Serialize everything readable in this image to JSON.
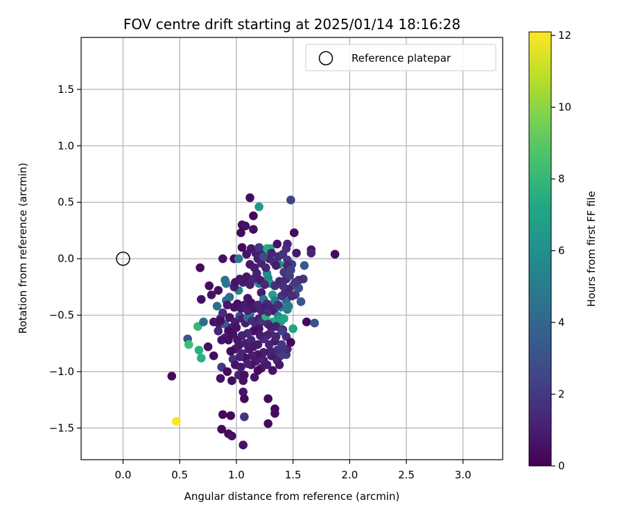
{
  "chart_data": {
    "type": "scatter",
    "title": "FOV centre drift starting at 2025/01/14 18:16:28",
    "xlabel": "Angular distance from reference (arcmin)",
    "ylabel": "Rotation from reference (arcmin)",
    "xlim": [
      -0.37,
      3.35
    ],
    "ylim": [
      -1.78,
      1.96
    ],
    "xticks": [
      0.0,
      0.5,
      1.0,
      1.5,
      2.0,
      2.5,
      3.0
    ],
    "xtick_labels": [
      "0.0",
      "0.5",
      "1.0",
      "1.5",
      "2.0",
      "2.5",
      "3.0"
    ],
    "yticks": [
      -1.5,
      -1.0,
      -0.5,
      0.0,
      0.5,
      1.0,
      1.5
    ],
    "ytick_labels": [
      "−1.5",
      "−1.0",
      "−0.5",
      "0.0",
      "0.5",
      "1.0",
      "1.5"
    ],
    "grid": true,
    "legend": {
      "position": "top-right",
      "label": "Reference platepar"
    },
    "reference_point": {
      "x": 0.0,
      "y": 0.0
    },
    "colorbar": {
      "label": "Hours from first FF file",
      "range": [
        0,
        12.1
      ],
      "ticks": [
        0,
        2,
        4,
        6,
        8,
        10,
        12
      ],
      "tick_labels": [
        "0",
        "2",
        "4",
        "6",
        "8",
        "10",
        "12"
      ],
      "colormap": "viridis"
    },
    "points": [
      [
        1.12,
        0.54,
        0.4
      ],
      [
        1.05,
        0.3,
        0.5
      ],
      [
        1.08,
        0.29,
        0.6
      ],
      [
        1.04,
        0.23,
        0.3
      ],
      [
        1.15,
        0.38,
        0.2
      ],
      [
        1.15,
        0.26,
        0.5
      ],
      [
        1.48,
        0.52,
        2.4
      ],
      [
        1.51,
        0.23,
        0.3
      ],
      [
        1.2,
        0.46,
        6.5
      ],
      [
        0.98,
        0.0,
        0.4
      ],
      [
        0.88,
        0.0,
        0.5
      ],
      [
        1.05,
        0.1,
        0.3
      ],
      [
        1.23,
        0.06,
        0.6
      ],
      [
        1.27,
        0.09,
        7.3
      ],
      [
        1.3,
        0.09,
        7.2
      ],
      [
        1.36,
        0.13,
        0.6
      ],
      [
        1.45,
        0.13,
        1.2
      ],
      [
        1.44,
        0.09,
        1.5
      ],
      [
        1.53,
        0.05,
        0.8
      ],
      [
        1.66,
        0.08,
        0.8
      ],
      [
        1.66,
        0.05,
        1.2
      ],
      [
        1.87,
        0.04,
        0.3
      ],
      [
        0.68,
        -0.08,
        0.3
      ],
      [
        0.76,
        -0.24,
        0.4
      ],
      [
        0.78,
        -0.32,
        0.6
      ],
      [
        0.84,
        -0.28,
        0.5
      ],
      [
        0.69,
        -0.36,
        0.5
      ],
      [
        0.9,
        -0.19,
        4.6
      ],
      [
        0.91,
        -0.22,
        4.7
      ],
      [
        0.94,
        -0.34,
        4.3
      ],
      [
        0.91,
        -0.37,
        4.5
      ],
      [
        1.02,
        0.0,
        5.0
      ],
      [
        1.02,
        -0.28,
        5.2
      ],
      [
        0.98,
        -0.25,
        1.0
      ],
      [
        1.1,
        -0.35,
        0.7
      ],
      [
        1.14,
        -0.42,
        0.5
      ],
      [
        1.22,
        -0.3,
        0.9
      ],
      [
        1.28,
        -0.17,
        5.3
      ],
      [
        1.27,
        -0.13,
        5.8
      ],
      [
        1.3,
        -0.22,
        6.3
      ],
      [
        1.32,
        -0.32,
        7.0
      ],
      [
        1.35,
        -0.05,
        6.8
      ],
      [
        1.38,
        -0.05,
        6.0
      ],
      [
        1.42,
        -0.12,
        1.8
      ],
      [
        1.49,
        -0.05,
        2.4
      ],
      [
        1.5,
        -0.24,
        2.5
      ],
      [
        1.52,
        -0.32,
        2.2
      ],
      [
        1.55,
        -0.26,
        3.0
      ],
      [
        1.57,
        -0.38,
        3.2
      ],
      [
        1.59,
        -0.18,
        1.8
      ],
      [
        1.6,
        -0.06,
        3.3
      ],
      [
        1.55,
        -0.19,
        1.6
      ],
      [
        1.2,
        -0.22,
        5.5
      ],
      [
        1.24,
        -0.36,
        4.8
      ],
      [
        1.27,
        -0.4,
        1.3
      ],
      [
        1.33,
        -0.46,
        1.0
      ],
      [
        1.39,
        -0.43,
        5.1
      ],
      [
        1.44,
        -0.37,
        4.2
      ],
      [
        1.45,
        -0.45,
        4.8
      ],
      [
        1.46,
        -0.42,
        5.0
      ],
      [
        1.37,
        -0.51,
        5.5
      ],
      [
        1.38,
        -0.54,
        6.6
      ],
      [
        1.32,
        -0.56,
        7.1
      ],
      [
        1.25,
        -0.53,
        7.9
      ],
      [
        1.39,
        -0.56,
        6.7
      ],
      [
        1.42,
        -0.53,
        6.8
      ],
      [
        1.5,
        -0.62,
        7.0
      ],
      [
        1.41,
        -0.63,
        1.1
      ],
      [
        1.39,
        -0.86,
        2.4
      ],
      [
        1.44,
        -0.85,
        2.1
      ],
      [
        1.45,
        -0.8,
        1.4
      ],
      [
        1.34,
        -0.73,
        0.8
      ],
      [
        1.33,
        -0.83,
        1.5
      ],
      [
        1.36,
        -0.9,
        1.1
      ],
      [
        1.31,
        -0.86,
        0.8
      ],
      [
        1.24,
        -0.9,
        1.1
      ],
      [
        1.17,
        -0.91,
        1.0
      ],
      [
        1.22,
        -0.97,
        0.8
      ],
      [
        1.13,
        -0.94,
        0.6
      ],
      [
        1.11,
        -0.8,
        0.9
      ],
      [
        1.05,
        -0.84,
        1.4
      ],
      [
        0.99,
        -0.8,
        0.9
      ],
      [
        0.97,
        -0.89,
        1.8
      ],
      [
        0.87,
        -0.96,
        2.0
      ],
      [
        0.86,
        -1.06,
        0.5
      ],
      [
        0.92,
        -1.0,
        0.3
      ],
      [
        0.96,
        -1.08,
        0.4
      ],
      [
        1.02,
        -1.03,
        1.1
      ],
      [
        1.07,
        -1.03,
        0.5
      ],
      [
        1.06,
        -1.08,
        0.6
      ],
      [
        1.16,
        -1.05,
        0.7
      ],
      [
        1.19,
        -0.99,
        0.3
      ],
      [
        1.06,
        -1.18,
        0.7
      ],
      [
        1.07,
        -1.24,
        0.3
      ],
      [
        1.28,
        -1.24,
        0.3
      ],
      [
        1.34,
        -1.33,
        0.3
      ],
      [
        1.34,
        -1.37,
        0.3
      ],
      [
        0.95,
        -1.39,
        0.3
      ],
      [
        1.07,
        -1.4,
        1.8
      ],
      [
        0.88,
        -1.38,
        0.3
      ],
      [
        0.87,
        -1.51,
        0.2
      ],
      [
        0.93,
        -1.55,
        0.3
      ],
      [
        0.96,
        -1.57,
        0.5
      ],
      [
        1.28,
        -1.46,
        0.3
      ],
      [
        1.06,
        -1.65,
        0.6
      ],
      [
        0.43,
        -1.04,
        0.3
      ],
      [
        0.47,
        -1.44,
        12.0
      ],
      [
        0.57,
        -0.71,
        3.2
      ],
      [
        0.58,
        -0.76,
        8.3
      ],
      [
        0.66,
        -0.6,
        8.0
      ],
      [
        0.67,
        -0.81,
        7.6
      ],
      [
        0.69,
        -0.88,
        7.7
      ],
      [
        0.71,
        -0.56,
        4.3
      ],
      [
        0.75,
        -0.78,
        0.5
      ],
      [
        0.8,
        -0.56,
        0.7
      ],
      [
        0.8,
        -0.86,
        0.4
      ],
      [
        0.85,
        -0.58,
        0.9
      ],
      [
        0.86,
        -0.53,
        1.3
      ],
      [
        0.88,
        -0.48,
        1.5
      ],
      [
        0.9,
        -0.58,
        3.4
      ],
      [
        0.94,
        -0.52,
        0.6
      ],
      [
        0.96,
        -0.61,
        1.0
      ],
      [
        0.99,
        -0.56,
        0.9
      ],
      [
        1.03,
        -0.51,
        2.6
      ],
      [
        1.05,
        -0.53,
        1.1
      ],
      [
        1.08,
        -0.57,
        1.0
      ],
      [
        1.1,
        -0.52,
        4.2
      ],
      [
        1.12,
        -0.49,
        4.6
      ],
      [
        1.14,
        -0.55,
        1.6
      ],
      [
        1.17,
        -0.58,
        1.4
      ],
      [
        1.2,
        -0.53,
        1.0
      ],
      [
        1.22,
        -0.56,
        1.7
      ],
      [
        1.26,
        -0.51,
        7.8
      ],
      [
        1.28,
        -0.58,
        1.3
      ],
      [
        1.31,
        -0.61,
        0.9
      ],
      [
        1.3,
        -0.66,
        1.4
      ],
      [
        1.27,
        -0.68,
        1.0
      ],
      [
        1.2,
        -0.62,
        0.7
      ],
      [
        1.15,
        -0.64,
        0.5
      ],
      [
        1.1,
        -0.66,
        1.4
      ],
      [
        1.05,
        -0.68,
        1.1
      ],
      [
        1.01,
        -0.72,
        0.7
      ],
      [
        0.97,
        -0.67,
        0.6
      ],
      [
        0.93,
        -0.64,
        0.4
      ],
      [
        0.9,
        -0.7,
        1.0
      ],
      [
        0.87,
        -0.72,
        0.6
      ],
      [
        0.84,
        -0.64,
        1.2
      ],
      [
        1.02,
        -0.77,
        0.8
      ],
      [
        1.08,
        -0.75,
        1.0
      ],
      [
        1.13,
        -0.72,
        1.2
      ],
      [
        1.19,
        -0.76,
        0.9
      ],
      [
        1.24,
        -0.71,
        1.5
      ],
      [
        1.29,
        -0.76,
        1.2
      ],
      [
        1.35,
        -0.69,
        1.3
      ],
      [
        1.4,
        -0.76,
        2.0
      ],
      [
        1.44,
        -0.69,
        1.6
      ],
      [
        1.48,
        -0.74,
        0.3
      ],
      [
        1.41,
        -0.8,
        1.9
      ],
      [
        1.36,
        -0.81,
        1.7
      ],
      [
        1.3,
        -0.82,
        1.1
      ],
      [
        1.24,
        -0.83,
        1.0
      ],
      [
        1.19,
        -0.85,
        0.6
      ],
      [
        1.14,
        -0.86,
        0.9
      ],
      [
        1.08,
        -0.88,
        0.5
      ],
      [
        1.03,
        -0.87,
        1.2
      ],
      [
        0.99,
        -0.94,
        0.6
      ],
      [
        1.04,
        -0.96,
        0.8
      ],
      [
        1.1,
        -0.93,
        1.1
      ],
      [
        1.27,
        -0.94,
        0.9
      ],
      [
        1.32,
        -0.99,
        0.6
      ],
      [
        1.38,
        -0.94,
        0.8
      ],
      [
        1.62,
        -0.56,
        0.3
      ],
      [
        1.69,
        -0.57,
        3.0
      ],
      [
        0.83,
        -0.42,
        4.4
      ],
      [
        0.92,
        -0.41,
        0.8
      ],
      [
        0.98,
        -0.43,
        0.6
      ],
      [
        1.01,
        -0.4,
        0.5
      ],
      [
        1.04,
        -0.44,
        0.8
      ],
      [
        1.07,
        -0.41,
        0.9
      ],
      [
        1.1,
        -0.46,
        1.1
      ],
      [
        1.13,
        -0.39,
        0.6
      ],
      [
        1.16,
        -0.44,
        0.8
      ],
      [
        1.19,
        -0.41,
        1.2
      ],
      [
        1.22,
        -0.46,
        1.3
      ],
      [
        1.25,
        -0.43,
        1.0
      ],
      [
        1.28,
        -0.47,
        1.5
      ],
      [
        1.31,
        -0.42,
        1.1
      ],
      [
        1.34,
        -0.37,
        4.8
      ],
      [
        1.37,
        -0.41,
        1.6
      ],
      [
        1.4,
        -0.33,
        1.9
      ],
      [
        1.43,
        -0.3,
        1.4
      ],
      [
        1.46,
        -0.27,
        1.2
      ],
      [
        1.49,
        -0.33,
        1.5
      ],
      [
        1.52,
        -0.21,
        2.0
      ],
      [
        0.99,
        -0.21,
        0.6
      ],
      [
        1.03,
        -0.18,
        0.8
      ],
      [
        1.06,
        -0.21,
        0.9
      ],
      [
        1.09,
        -0.16,
        0.7
      ],
      [
        1.12,
        -0.23,
        1.0
      ],
      [
        1.15,
        -0.18,
        1.3
      ],
      [
        1.18,
        -0.13,
        1.1
      ],
      [
        1.21,
        -0.19,
        1.0
      ],
      [
        1.25,
        -0.23,
        1.4
      ],
      [
        1.34,
        -0.24,
        1.6
      ],
      [
        1.38,
        -0.2,
        1.3
      ],
      [
        1.41,
        -0.24,
        1.7
      ],
      [
        1.44,
        -0.18,
        1.4
      ],
      [
        1.47,
        -0.15,
        2.1
      ],
      [
        1.12,
        -0.05,
        0.8
      ],
      [
        1.16,
        -0.08,
        0.9
      ],
      [
        1.19,
        0.0,
        1.0
      ],
      [
        1.22,
        -0.04,
        1.2
      ],
      [
        1.26,
        -0.08,
        1.3
      ],
      [
        1.29,
        0.0,
        1.1
      ],
      [
        1.33,
        -0.03,
        1.4
      ],
      [
        1.37,
        0.02,
        1.5
      ],
      [
        1.41,
        0.04,
        1.7
      ],
      [
        1.45,
        -0.01,
        1.9
      ],
      [
        1.09,
        0.04,
        0.6
      ],
      [
        1.13,
        0.09,
        0.8
      ],
      [
        1.17,
        0.05,
        1.0
      ],
      [
        1.2,
        0.1,
        2.0
      ],
      [
        1.24,
        0.02,
        2.7
      ],
      [
        1.31,
        0.05,
        1.2
      ],
      [
        1.35,
        -0.06,
        1.0
      ],
      [
        1.45,
        -0.06,
        1.2
      ],
      [
        1.48,
        -0.1,
        2.3
      ],
      [
        0.86,
        -0.55,
        0.6
      ],
      [
        0.93,
        -0.72,
        0.5
      ],
      [
        0.95,
        -0.82,
        0.4
      ],
      [
        1.0,
        -0.61,
        0.6
      ],
      [
        1.15,
        -0.78,
        0.8
      ],
      [
        1.21,
        -0.68,
        1.0
      ],
      [
        1.35,
        -0.6,
        1.1
      ],
      [
        1.4,
        -0.64,
        2.2
      ]
    ]
  }
}
